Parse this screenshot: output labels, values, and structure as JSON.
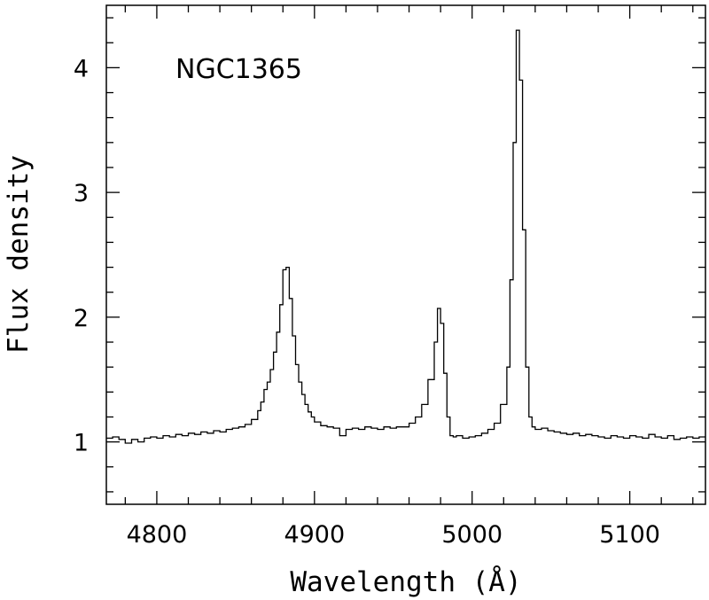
{
  "chart_data": {
    "type": "line",
    "style": "step",
    "annotation": "NGC1365",
    "xlabel": "Wavelength (Å)",
    "ylabel": "Flux density",
    "xlim": [
      4768,
      5148
    ],
    "ylim": [
      0.5,
      4.5
    ],
    "x_ticks": [
      4800,
      4900,
      5000,
      5100
    ],
    "x_tick_labels": [
      "4800",
      "4900",
      "5000",
      "5100"
    ],
    "y_ticks": [
      1,
      2,
      3,
      4
    ],
    "y_tick_labels": [
      "1",
      "2",
      "3",
      "4"
    ],
    "grid": false,
    "series": [
      {
        "x": [
          4768,
          4772,
          4776,
          4780,
          4784,
          4788,
          4792,
          4796,
          4800,
          4804,
          4808,
          4812,
          4816,
          4820,
          4824,
          4828,
          4832,
          4836,
          4840,
          4844,
          4848,
          4852,
          4856,
          4860,
          4864,
          4866,
          4868,
          4870,
          4872,
          4874,
          4876,
          4878,
          4880,
          4882,
          4884,
          4886,
          4888,
          4890,
          4892,
          4894,
          4896,
          4898,
          4900,
          4904,
          4908,
          4912,
          4916,
          4920,
          4924,
          4928,
          4932,
          4936,
          4940,
          4944,
          4948,
          4952,
          4956,
          4960,
          4964,
          4968,
          4972,
          4976,
          4978,
          4980,
          4982,
          4984,
          4986,
          4988,
          4990,
          4994,
          4998,
          5002,
          5006,
          5010,
          5014,
          5018,
          5022,
          5024,
          5026,
          5028,
          5030,
          5032,
          5034,
          5036,
          5038,
          5040,
          5044,
          5048,
          5052,
          5056,
          5060,
          5064,
          5068,
          5072,
          5076,
          5080,
          5084,
          5088,
          5092,
          5096,
          5100,
          5104,
          5108,
          5112,
          5116,
          5120,
          5124,
          5128,
          5132,
          5136,
          5140,
          5144,
          5148
        ],
        "y": [
          1.03,
          1.04,
          1.02,
          0.99,
          1.02,
          1.0,
          1.03,
          1.04,
          1.03,
          1.05,
          1.04,
          1.06,
          1.05,
          1.07,
          1.06,
          1.08,
          1.07,
          1.09,
          1.08,
          1.1,
          1.11,
          1.12,
          1.14,
          1.18,
          1.25,
          1.32,
          1.42,
          1.48,
          1.58,
          1.72,
          1.88,
          2.1,
          2.38,
          2.4,
          2.15,
          1.85,
          1.62,
          1.48,
          1.38,
          1.3,
          1.24,
          1.2,
          1.16,
          1.13,
          1.12,
          1.11,
          1.05,
          1.1,
          1.11,
          1.1,
          1.12,
          1.11,
          1.1,
          1.12,
          1.11,
          1.12,
          1.12,
          1.15,
          1.2,
          1.3,
          1.5,
          1.8,
          2.07,
          1.95,
          1.55,
          1.2,
          1.05,
          1.04,
          1.05,
          1.03,
          1.04,
          1.05,
          1.07,
          1.1,
          1.15,
          1.3,
          1.6,
          2.3,
          3.4,
          4.3,
          3.9,
          2.7,
          1.6,
          1.2,
          1.12,
          1.1,
          1.11,
          1.09,
          1.08,
          1.07,
          1.06,
          1.07,
          1.05,
          1.06,
          1.05,
          1.04,
          1.03,
          1.05,
          1.04,
          1.03,
          1.05,
          1.04,
          1.03,
          1.06,
          1.04,
          1.03,
          1.05,
          1.02,
          1.03,
          1.04,
          1.03,
          1.04,
          1.04
        ]
      }
    ]
  }
}
